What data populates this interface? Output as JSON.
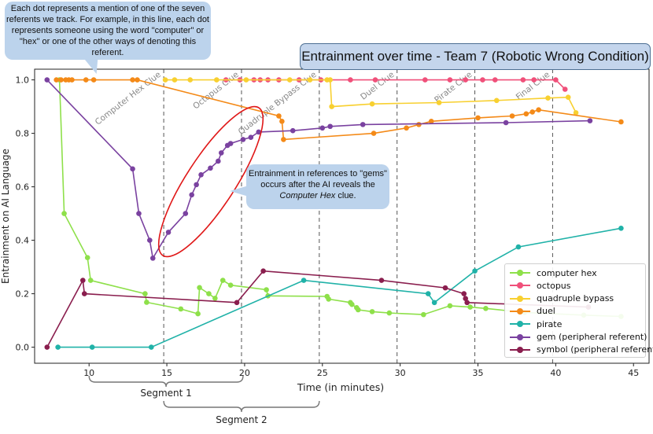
{
  "chart_data": {
    "type": "line",
    "title": "Entrainment over time - Team 7 (Robotic Wrong Condition)",
    "xlabel": "Time (in minutes)",
    "ylabel": "Entrainment on AI Language",
    "xlim": [
      6.5,
      46
    ],
    "ylim": [
      -0.06,
      1.04
    ],
    "xticks": [
      10,
      15,
      20,
      25,
      30,
      35,
      40,
      45
    ],
    "yticks": [
      0.0,
      0.2,
      0.4,
      0.6,
      0.8,
      1.0
    ],
    "grid": false,
    "legend_position": "bottom-right",
    "clue_lines": [
      {
        "x": 14.8,
        "label": "Computer Hex Clue"
      },
      {
        "x": 19.8,
        "label": "Octopus Clue"
      },
      {
        "x": 24.8,
        "label": "Quadruple Bypass Clue"
      },
      {
        "x": 29.8,
        "label": "Duel Clue"
      },
      {
        "x": 34.8,
        "label": "Pirate Clue"
      },
      {
        "x": 39.8,
        "label": "Final Clue"
      }
    ],
    "series": [
      {
        "name": "computer hex",
        "color": "#8ee04a",
        "points": [
          [
            8.1,
            1.0
          ],
          [
            8.4,
            0.5
          ],
          [
            9.9,
            0.335
          ],
          [
            10.1,
            0.25
          ],
          [
            13.6,
            0.2
          ],
          [
            13.7,
            0.168
          ],
          [
            15.9,
            0.143
          ],
          [
            17.0,
            0.125
          ],
          [
            17.1,
            0.223
          ],
          [
            17.7,
            0.2
          ],
          [
            18.1,
            0.183
          ],
          [
            18.6,
            0.25
          ],
          [
            19.1,
            0.232
          ],
          [
            21.4,
            0.215
          ],
          [
            21.5,
            0.192
          ],
          [
            25.3,
            0.19
          ],
          [
            25.4,
            0.18
          ],
          [
            26.8,
            0.167
          ],
          [
            26.9,
            0.16
          ],
          [
            27.2,
            0.148
          ],
          [
            27.3,
            0.14
          ],
          [
            28.2,
            0.133
          ],
          [
            29.3,
            0.128
          ],
          [
            31.5,
            0.122
          ],
          [
            33.2,
            0.155
          ],
          [
            34.5,
            0.15
          ],
          [
            35.5,
            0.145
          ],
          [
            38.0,
            0.13
          ],
          [
            41.8,
            0.12
          ],
          [
            44.2,
            0.115
          ]
        ]
      },
      {
        "name": "octopus",
        "color": "#f0507a",
        "points": [
          [
            18.8,
            1.0
          ],
          [
            19.7,
            1.0
          ],
          [
            20.6,
            1.0
          ],
          [
            21.0,
            1.0
          ],
          [
            21.5,
            1.0
          ],
          [
            22.2,
            1.0
          ],
          [
            23.5,
            1.0
          ],
          [
            24.9,
            1.0
          ],
          [
            26.8,
            1.0
          ],
          [
            28.4,
            1.0
          ],
          [
            31.6,
            1.0
          ],
          [
            33.2,
            1.0
          ],
          [
            34.2,
            1.0
          ],
          [
            35.3,
            1.0
          ],
          [
            36.1,
            1.0
          ],
          [
            37.9,
            1.0
          ],
          [
            38.6,
            1.0
          ],
          [
            40.0,
            1.0
          ],
          [
            40.6,
            0.965
          ]
        ]
      },
      {
        "name": "quadruple bypass",
        "color": "#f8d030",
        "points": [
          [
            14.9,
            1.0
          ],
          [
            15.5,
            1.0
          ],
          [
            16.5,
            1.0
          ],
          [
            18.2,
            1.0
          ],
          [
            20.1,
            1.0
          ],
          [
            22.9,
            1.0
          ],
          [
            24.2,
            1.0
          ],
          [
            25.3,
            1.0
          ],
          [
            25.5,
            1.0
          ],
          [
            25.6,
            0.9
          ],
          [
            28.2,
            0.91
          ],
          [
            32.5,
            0.915
          ],
          [
            36.2,
            0.923
          ],
          [
            39.5,
            0.932
          ],
          [
            40.8,
            0.935
          ],
          [
            41.3,
            0.877
          ]
        ]
      },
      {
        "name": "duel",
        "color": "#f48a18",
        "points": [
          [
            7.9,
            1.0
          ],
          [
            8.2,
            1.0
          ],
          [
            8.5,
            1.0
          ],
          [
            8.7,
            1.0
          ],
          [
            8.9,
            1.0
          ],
          [
            9.8,
            1.0
          ],
          [
            10.3,
            1.0
          ],
          [
            12.8,
            1.0
          ],
          [
            13.1,
            1.0
          ],
          [
            22.2,
            0.865
          ],
          [
            22.4,
            0.845
          ],
          [
            22.5,
            0.777
          ],
          [
            28.3,
            0.8
          ],
          [
            30.4,
            0.82
          ],
          [
            31.2,
            0.833
          ],
          [
            32.0,
            0.845
          ],
          [
            35.0,
            0.858
          ],
          [
            37.2,
            0.865
          ],
          [
            38.1,
            0.873
          ],
          [
            38.5,
            0.88
          ],
          [
            38.9,
            0.888
          ],
          [
            44.2,
            0.843
          ]
        ]
      },
      {
        "name": "pirate",
        "color": "#20b2a8",
        "points": [
          [
            8.0,
            0.0
          ],
          [
            10.2,
            0.0
          ],
          [
            14.0,
            0.0
          ],
          [
            23.8,
            0.25
          ],
          [
            31.8,
            0.2
          ],
          [
            32.2,
            0.167
          ],
          [
            34.8,
            0.285
          ],
          [
            37.6,
            0.375
          ],
          [
            44.2,
            0.445
          ]
        ]
      },
      {
        "name": "gem (peripheral referent)",
        "color": "#7a42a0",
        "points": [
          [
            7.3,
            1.0
          ],
          [
            12.8,
            0.667
          ],
          [
            13.2,
            0.5
          ],
          [
            13.9,
            0.4
          ],
          [
            14.1,
            0.333
          ],
          [
            15.1,
            0.43
          ],
          [
            16.2,
            0.5
          ],
          [
            16.6,
            0.57
          ],
          [
            16.9,
            0.608
          ],
          [
            17.2,
            0.645
          ],
          [
            17.8,
            0.67
          ],
          [
            18.3,
            0.696
          ],
          [
            18.5,
            0.727
          ],
          [
            18.9,
            0.755
          ],
          [
            19.1,
            0.762
          ],
          [
            19.9,
            0.777
          ],
          [
            20.4,
            0.785
          ],
          [
            20.9,
            0.805
          ],
          [
            23.1,
            0.81
          ],
          [
            25.0,
            0.82
          ],
          [
            25.5,
            0.826
          ],
          [
            27.6,
            0.833
          ],
          [
            36.8,
            0.84
          ],
          [
            42.2,
            0.847
          ]
        ]
      },
      {
        "name": "symbol (peripheral referent)",
        "color": "#8a1e4e",
        "points": [
          [
            7.3,
            0.0
          ],
          [
            9.6,
            0.25
          ],
          [
            9.7,
            0.2
          ],
          [
            19.5,
            0.167
          ],
          [
            21.2,
            0.285
          ],
          [
            28.8,
            0.25
          ],
          [
            32.9,
            0.222
          ],
          [
            34.1,
            0.2
          ],
          [
            34.2,
            0.182
          ],
          [
            34.3,
            0.167
          ],
          [
            42.1,
            0.15
          ]
        ]
      }
    ],
    "annotations": {
      "segment_1": "Segment 1",
      "segment_2": "Segment 2",
      "callout_mention": "Each dot represents a mention of one of the seven referents we track. For example, in this line, each dot represents someone using the word \"computer\" or \"hex\" or one of the other ways of denoting this referent.",
      "callout_gems_1": "Entrainment in references to \"gems\" occurs after the AI reveals the ",
      "callout_gems_italic": "Computer Hex",
      "callout_gems_2": " clue."
    }
  }
}
